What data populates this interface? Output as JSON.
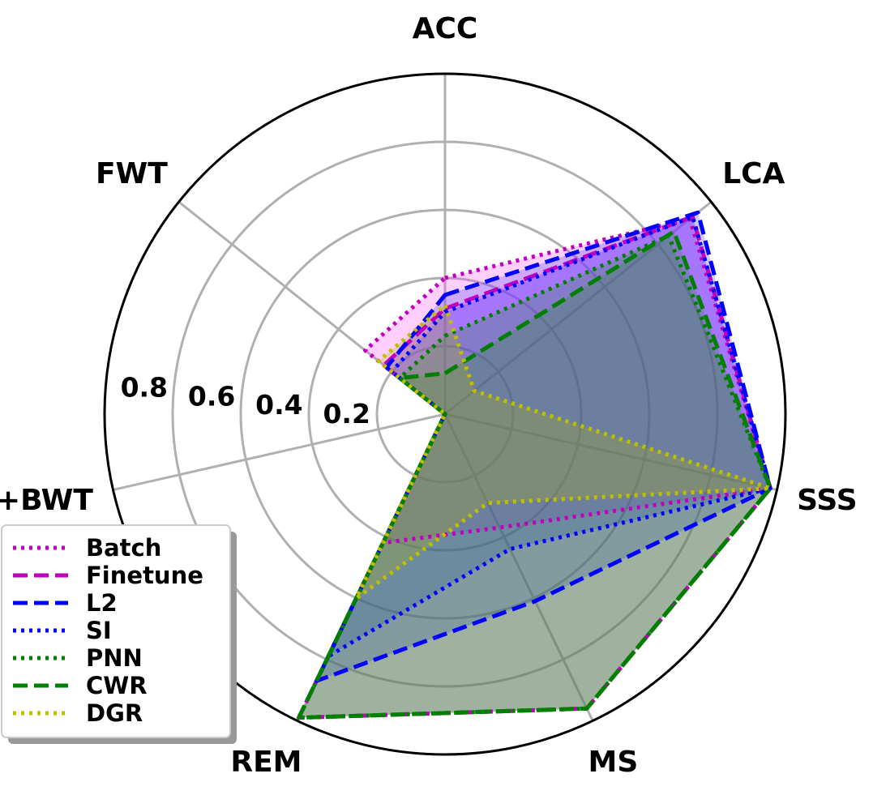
{
  "chart_data": {
    "type": "radar",
    "axes": [
      "ACC",
      "LCA",
      "SSS",
      "MS",
      "REM",
      "+BWT",
      "FWT"
    ],
    "radial_ticks": [
      "0.2",
      "0.4",
      "0.6",
      "0.8"
    ],
    "radial_tick_values": [
      0.2,
      0.4,
      0.6,
      0.8
    ],
    "rlim": [
      0,
      1
    ],
    "legend_position": "lower-left",
    "series": [
      {
        "name": "Batch",
        "color": "#bf00bf",
        "dash": "dotted",
        "fill": "#ff40ff",
        "values": [
          0.4,
          0.92,
          0.98,
          0.37,
          0.42,
          0.0,
          0.3
        ]
      },
      {
        "name": "Finetune",
        "color": "#bf00bf",
        "dash": "dashed",
        "fill": "#ff40ff",
        "values": [
          0.31,
          0.93,
          0.98,
          0.96,
          0.99,
          0.0,
          0.23
        ]
      },
      {
        "name": "L2",
        "color": "#0000ff",
        "dash": "dashed",
        "fill": "#3333ff",
        "values": [
          0.35,
          0.95,
          0.98,
          0.61,
          0.87,
          0.0,
          0.22
        ]
      },
      {
        "name": "SI",
        "color": "#0000ff",
        "dash": "dotted",
        "fill": "#3333ff",
        "values": [
          0.3,
          0.93,
          0.98,
          0.44,
          0.79,
          0.0,
          0.2
        ]
      },
      {
        "name": "PNN",
        "color": "#007f00",
        "dash": "dotted",
        "fill": "#228b22",
        "values": [
          0.23,
          0.84,
          0.98,
          0.96,
          0.99,
          0.0,
          0.17
        ]
      },
      {
        "name": "CWR",
        "color": "#007f00",
        "dash": "dashed",
        "fill": "#228b22",
        "values": [
          0.12,
          0.86,
          0.98,
          0.96,
          0.99,
          0.0,
          0.17
        ]
      },
      {
        "name": "DGR",
        "color": "#bfbf00",
        "dash": "dotted",
        "fill": "#b5b500",
        "values": [
          0.32,
          0.11,
          0.98,
          0.29,
          0.6,
          0.0,
          0.25
        ]
      }
    ]
  }
}
